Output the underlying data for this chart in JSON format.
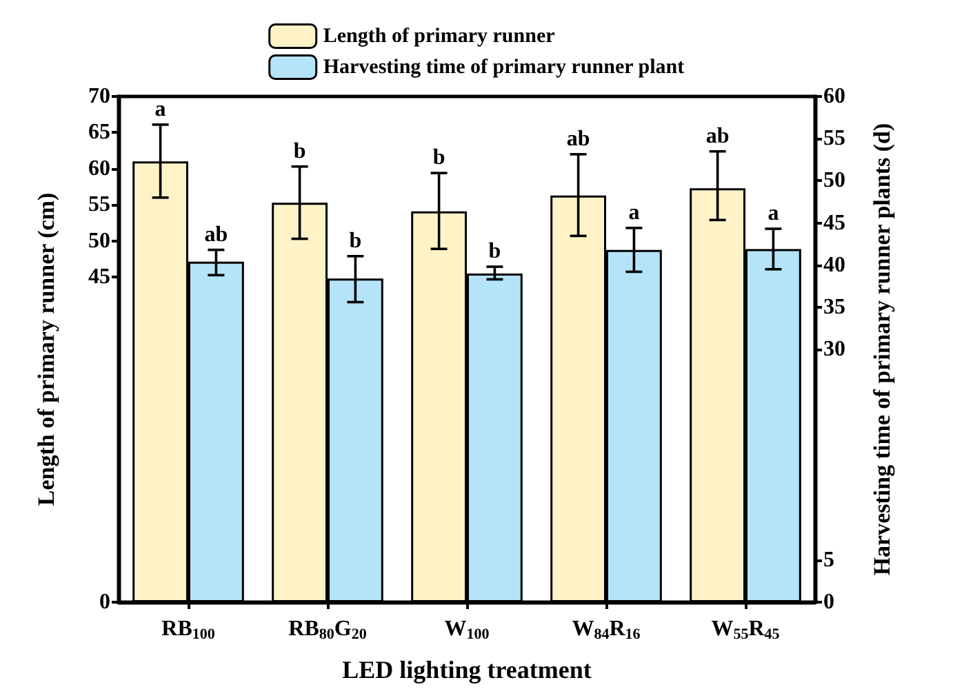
{
  "chart_data": {
    "type": "bar",
    "xlabel": "LED lighting treatment",
    "ylabel": "Length of primary runner (cm)",
    "y2label": "Harvesting time of primary runner plants (d)",
    "categories": [
      "RB$_{100}$",
      "RB$_{80}$G$_{20}$",
      "W$_{100}$",
      "W$_{84}$R$_{16}$",
      "W$_{55}$R$_{45}$"
    ],
    "series": [
      {
        "name": "Length of primary runner",
        "color": "#fdf3c6",
        "values": [
          61.0,
          55.3,
          54.1,
          56.3,
          57.3
        ],
        "errors": [
          [
            56.0,
            66.1
          ],
          [
            50.3,
            60.3
          ],
          [
            48.9,
            59.4
          ],
          [
            50.7,
            62.0
          ],
          [
            52.9,
            62.4
          ]
        ],
        "value_labels": [
          "a",
          "b",
          "b",
          "ab",
          "ab"
        ]
      },
      {
        "name": "Harvesting time of primary runner plant",
        "color": "#b5e4f8",
        "axis": "y2",
        "values": [
          40.4,
          38.4,
          39.0,
          41.8,
          41.9
        ],
        "errors": [
          [
            38.8,
            41.8
          ],
          [
            35.6,
            41.05
          ],
          [
            38.3,
            39.8
          ],
          [
            39.2,
            44.4
          ],
          [
            39.5,
            44.3
          ]
        ],
        "value_labels": [
          "ab",
          "b",
          "b",
          "a",
          "a"
        ]
      }
    ],
    "ylim": [
      0,
      70
    ],
    "yticks": [
      0,
      45,
      50,
      55,
      60,
      65,
      70
    ],
    "y2lim": [
      0,
      60
    ],
    "y2ticks": [
      0,
      5,
      30,
      35,
      40,
      45,
      50,
      55,
      60
    ],
    "grid": false,
    "legend": "top"
  }
}
